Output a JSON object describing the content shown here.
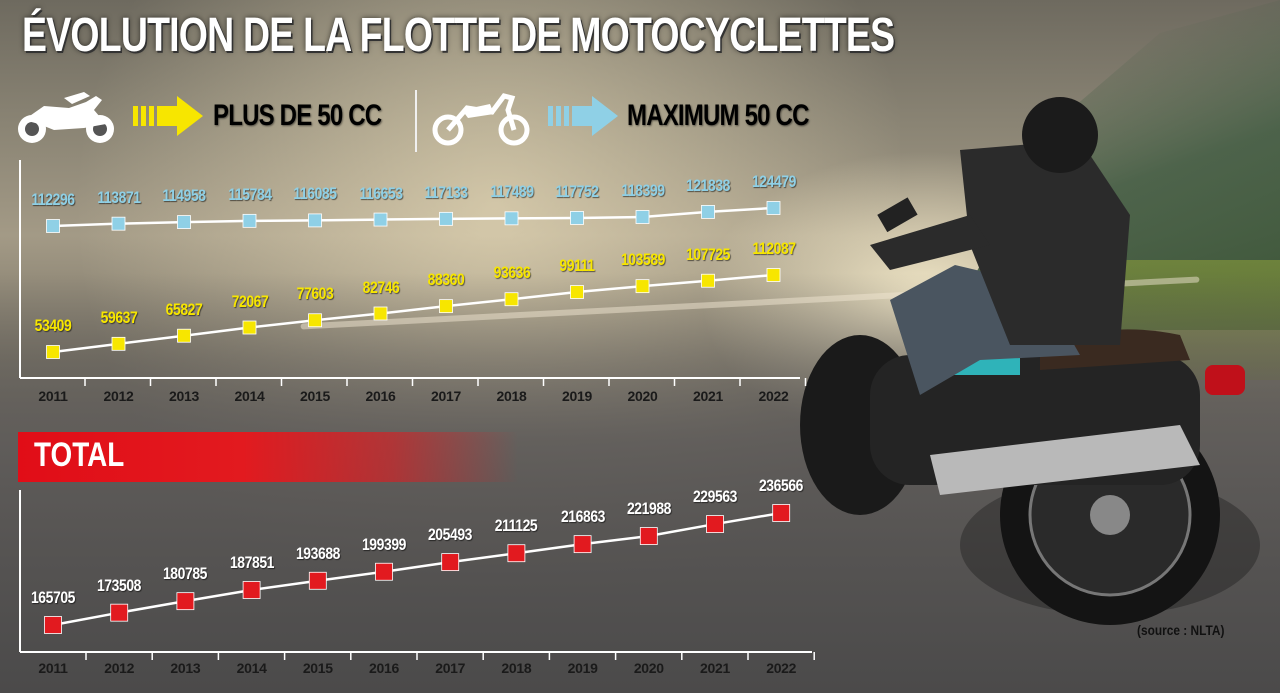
{
  "title": "ÉVOLUTION DE LA FLOTTE DE MOTOCYCLETTES",
  "legend": {
    "plus50": {
      "label": "PLUS DE 50 CC",
      "color": "#f7e600",
      "icon": "motorcycle-icon"
    },
    "max50": {
      "label": "MAXIMUM 50 CC",
      "color": "#8fd0e6",
      "icon": "moped-icon"
    }
  },
  "total": {
    "label": "TOTAL",
    "color": "#e21a1f"
  },
  "source": "(source : NLTA)",
  "chart_data": [
    {
      "type": "line",
      "categories": [
        "2011",
        "2012",
        "2013",
        "2014",
        "2015",
        "2016",
        "2017",
        "2018",
        "2019",
        "2020",
        "2021",
        "2022"
      ],
      "series": [
        {
          "name": "MAXIMUM 50 CC",
          "color": "#8fd0e6",
          "values": [
            112296,
            113871,
            114958,
            115784,
            116085,
            116653,
            117133,
            117489,
            117752,
            118399,
            121838,
            124479
          ]
        },
        {
          "name": "PLUS DE 50 CC",
          "color": "#f7e600",
          "values": [
            53409,
            59637,
            65827,
            72067,
            77603,
            82746,
            88360,
            93636,
            99111,
            103589,
            107725,
            112087
          ]
        }
      ]
    },
    {
      "type": "line",
      "title": "TOTAL",
      "categories": [
        "2011",
        "2012",
        "2013",
        "2014",
        "2015",
        "2016",
        "2017",
        "2018",
        "2019",
        "2020",
        "2021",
        "2022"
      ],
      "series": [
        {
          "name": "TOTAL",
          "color": "#e21a1f",
          "values": [
            165705,
            173508,
            180785,
            187851,
            193688,
            199399,
            205493,
            211125,
            216863,
            221988,
            229563,
            236566
          ]
        }
      ]
    }
  ]
}
